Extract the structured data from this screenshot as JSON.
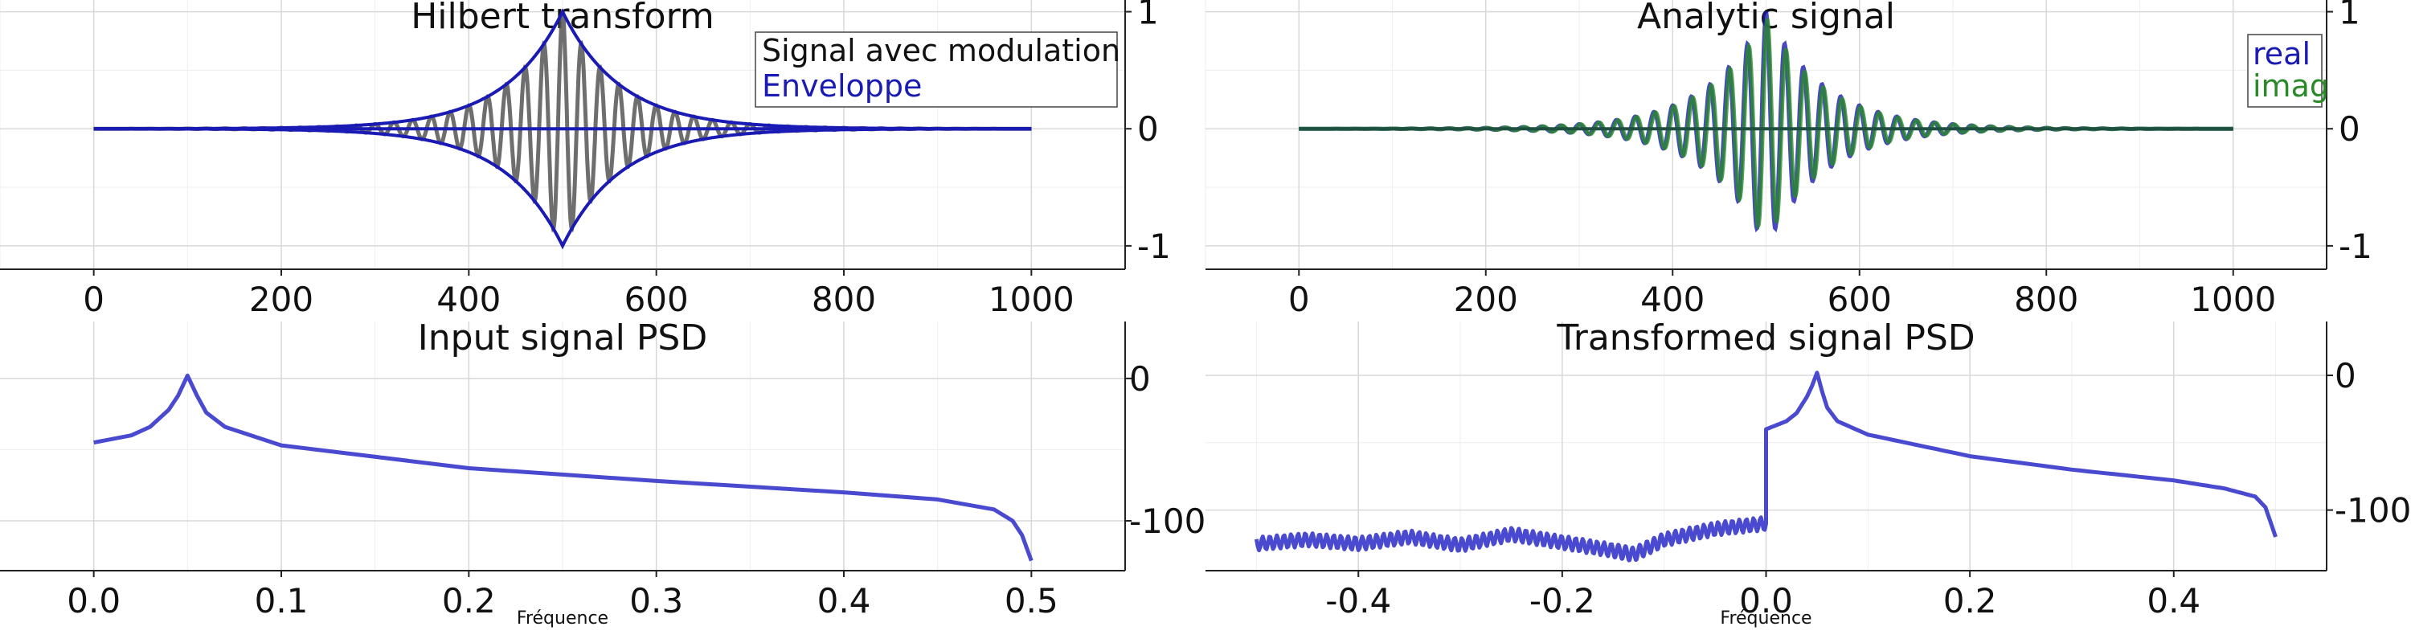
{
  "colors": {
    "blue": "#1a1ab4",
    "blue_psd": "#4a4ad0",
    "gray": "#555555",
    "green": "#2a8a2a",
    "grid": "#d8d8d8",
    "minor_grid": "#eeeeee",
    "axis": "#222222"
  },
  "chart_data": [
    {
      "id": "hilbert",
      "type": "line",
      "title": "Hilbert transform",
      "xlabel": "",
      "ylabel": "",
      "xlim": [
        -100,
        1100
      ],
      "ylim": [
        -1.2,
        1.1
      ],
      "xticks": [
        0,
        200,
        400,
        600,
        800,
        1000
      ],
      "xtick_labels": [
        "0",
        "200",
        "400",
        "600",
        "800",
        "1000"
      ],
      "yticks": [
        -1,
        0,
        1
      ],
      "ytick_labels": [
        "-1",
        "0",
        "1"
      ],
      "grid": true,
      "legend_position": "top-right",
      "signal_model": "gaussian-like envelope centered at n=500, carrier frequency 0.05 cycles/sample, n from 0 to 1000",
      "series": [
        {
          "name": "Signal avec modulation",
          "color_key": "gray",
          "x": [
            0,
            100,
            200,
            300,
            400,
            450,
            500,
            550,
            600,
            700,
            800,
            900,
            1000
          ],
          "values": [
            0,
            0.005,
            0.02,
            0.08,
            0.3,
            0.52,
            1.0,
            0.52,
            0.3,
            0.08,
            0.02,
            0.005,
            0
          ]
        },
        {
          "name": "Enveloppe",
          "color_key": "blue",
          "x": [
            0,
            100,
            200,
            300,
            400,
            450,
            500,
            550,
            600,
            700,
            800,
            900,
            1000
          ],
          "values": [
            0,
            0.005,
            0.02,
            0.08,
            0.3,
            0.52,
            1.0,
            0.52,
            0.3,
            0.08,
            0.02,
            0.005,
            0
          ]
        }
      ]
    },
    {
      "id": "analytic",
      "type": "line",
      "title": "Analytic signal",
      "xlabel": "",
      "ylabel": "",
      "xlim": [
        -100,
        1100
      ],
      "ylim": [
        -1.2,
        1.1
      ],
      "xticks": [
        0,
        200,
        400,
        600,
        800,
        1000
      ],
      "xtick_labels": [
        "0",
        "200",
        "400",
        "600",
        "800",
        "1000"
      ],
      "yticks": [
        -1,
        0,
        1
      ],
      "ytick_labels": [
        "-1",
        "0",
        "1"
      ],
      "grid": true,
      "legend_position": "top-right",
      "series": [
        {
          "name": "real",
          "color_key": "blue",
          "x": [
            0,
            200,
            300,
            400,
            450,
            500,
            550,
            600,
            700,
            800,
            1000
          ],
          "values": [
            0,
            0.01,
            0.08,
            0.3,
            0.52,
            1.0,
            0.52,
            0.3,
            0.08,
            0.01,
            0
          ]
        },
        {
          "name": "imag",
          "color_key": "green",
          "x": [
            0,
            200,
            300,
            400,
            450,
            500,
            550,
            600,
            700,
            800,
            1000
          ],
          "values": [
            0,
            0.01,
            0.08,
            0.3,
            0.52,
            0.95,
            0.52,
            0.3,
            0.08,
            0.01,
            0
          ]
        }
      ]
    },
    {
      "id": "input_psd",
      "type": "line",
      "title": "Input signal PSD",
      "xlabel": "Fréquence",
      "ylabel": "",
      "xlim": [
        -0.05,
        0.55
      ],
      "ylim": [
        -135,
        40
      ],
      "xticks": [
        0.0,
        0.1,
        0.2,
        0.3,
        0.4,
        0.5
      ],
      "xtick_labels": [
        "0.0",
        "0.1",
        "0.2",
        "0.3",
        "0.4",
        "0.5"
      ],
      "yticks": [
        0,
        -100
      ],
      "ytick_labels": [
        "0",
        "-100"
      ],
      "grid": true,
      "series": [
        {
          "name": "",
          "color_key": "blue_psd",
          "x": [
            0.0,
            0.02,
            0.03,
            0.04,
            0.045,
            0.05,
            0.055,
            0.06,
            0.07,
            0.1,
            0.2,
            0.3,
            0.4,
            0.45,
            0.48,
            0.49,
            0.495,
            0.5
          ],
          "values": [
            -45,
            -40,
            -34,
            -22,
            -12,
            2,
            -12,
            -24,
            -34,
            -47,
            -63,
            -72,
            -80,
            -85,
            -92,
            -100,
            -110,
            -128
          ]
        }
      ]
    },
    {
      "id": "transformed_psd",
      "type": "line",
      "title": "Transformed signal PSD",
      "xlabel": "Fréquence",
      "ylabel": "",
      "xlim": [
        -0.55,
        0.55
      ],
      "ylim": [
        -145,
        40
      ],
      "xticks": [
        -0.4,
        -0.2,
        0.0,
        0.2,
        0.4
      ],
      "xtick_labels": [
        "-0.4",
        "-0.2",
        "0.0",
        "0.2",
        "0.4"
      ],
      "yticks": [
        0,
        -100
      ],
      "ytick_labels": [
        "0",
        "-100"
      ],
      "grid": true,
      "series": [
        {
          "name": "",
          "color_key": "blue_psd",
          "x": [
            -0.5,
            -0.45,
            -0.4,
            -0.35,
            -0.3,
            -0.25,
            -0.2,
            -0.15,
            -0.13,
            -0.1,
            -0.05,
            -0.0,
            0.0,
            0.02,
            0.03,
            0.04,
            0.045,
            0.05,
            0.055,
            0.06,
            0.07,
            0.1,
            0.2,
            0.3,
            0.4,
            0.45,
            0.48,
            0.49,
            0.5
          ],
          "values": [
            -125,
            -122,
            -125,
            -120,
            -126,
            -118,
            -124,
            -130,
            -133,
            -122,
            -114,
            -110,
            -40,
            -34,
            -28,
            -16,
            -8,
            2,
            -12,
            -24,
            -34,
            -44,
            -60,
            -70,
            -78,
            -84,
            -90,
            -98,
            -120
          ]
        }
      ]
    }
  ]
}
